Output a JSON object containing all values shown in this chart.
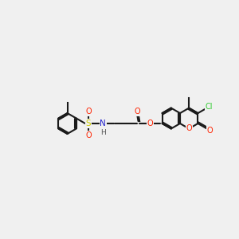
{
  "bg": "#f0f0f0",
  "lc": "#1a1a1a",
  "colors": {
    "O": "#ff2200",
    "N": "#2222cc",
    "S": "#cccc00",
    "Cl": "#33cc33",
    "H": "#555555"
  },
  "lw": 1.5,
  "fs": 7.0,
  "r": 0.44
}
